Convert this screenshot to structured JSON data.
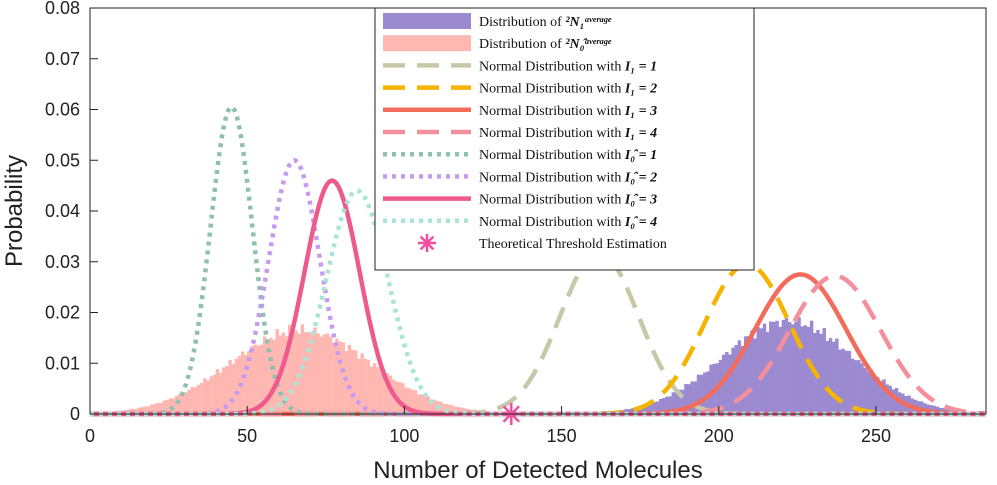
{
  "chart_data": {
    "type": "line",
    "title": "",
    "xlabel": "Number of Detected Molecules",
    "ylabel": "Probability",
    "xlim": [
      0,
      285
    ],
    "ylim": [
      0,
      0.08
    ],
    "xticks": [
      0,
      50,
      100,
      150,
      200,
      250
    ],
    "yticks": [
      0,
      0.01,
      0.02,
      0.03,
      0.04,
      0.05,
      0.06,
      0.07,
      0.08
    ],
    "xtick_labels": [
      "0",
      "50",
      "100",
      "150",
      "200",
      "250"
    ],
    "ytick_labels": [
      "0",
      "0.01",
      "0.02",
      "0.03",
      "0.04",
      "0.05",
      "0.06",
      "0.07",
      "0.08"
    ],
    "legend_position": "top-right",
    "histograms": [
      {
        "name": "Distribution of 2N1average",
        "color": "#9b8ad0",
        "mean": 222,
        "sd": 21,
        "peak": 0.0183
      },
      {
        "name": "Distribution of 2N0average",
        "color": "#ffb7b2",
        "mean": 67,
        "sd": 22.5,
        "peak": 0.0165
      }
    ],
    "series": [
      {
        "name": "I1 = 1",
        "mean": 162,
        "sd": 12.5,
        "peak": 0.0318,
        "color": "#c8c8a8",
        "dash": "dashed"
      },
      {
        "name": "I1 = 2",
        "mean": 209,
        "sd": 13.5,
        "peak": 0.0295,
        "color": "#f5b400",
        "dash": "dashed"
      },
      {
        "name": "I1 = 3",
        "mean": 226,
        "sd": 14.5,
        "peak": 0.0275,
        "color": "#f26b5b",
        "dash": "solid"
      },
      {
        "name": "I1 = 4",
        "mean": 237,
        "sd": 14.5,
        "peak": 0.0272,
        "color": "#f4909c",
        "dash": "dashed"
      },
      {
        "name": "I0 = 1",
        "mean": 45,
        "sd": 6.7,
        "peak": 0.0605,
        "color": "#8ebfb0",
        "dash": "dotted"
      },
      {
        "name": "I0 = 2",
        "mean": 65,
        "sd": 8.2,
        "peak": 0.05,
        "color": "#c39bf0",
        "dash": "dotted"
      },
      {
        "name": "I0 = 3",
        "mean": 77,
        "sd": 8.8,
        "peak": 0.046,
        "color": "#ee5a8e",
        "dash": "solid"
      },
      {
        "name": "I0 = 4",
        "mean": 85,
        "sd": 9.8,
        "peak": 0.044,
        "color": "#a8e5d5",
        "dash": "dotted"
      }
    ],
    "markers": [
      {
        "name": "Theoretical Threshold Estimation",
        "x": 134,
        "y": 0.0,
        "symbol": "asterisk",
        "color": "#f24ea0"
      }
    ],
    "legend": [
      {
        "prefix": "Distribution of ",
        "math": "²N₁ᵃᵛᵉʳᵃᵍᵉ"
      },
      {
        "prefix": "Distribution of ",
        "math": "²N₀̂ᵃᵛᵉʳᵃᵍᵉ"
      },
      {
        "prefix": "Normal Distribution with ",
        "math": "I₁ = 1"
      },
      {
        "prefix": "Normal Distribution with ",
        "math": "I₁ = 2"
      },
      {
        "prefix": "Normal Distribution with ",
        "math": "I₁ = 3"
      },
      {
        "prefix": "Normal Distribution with ",
        "math": "I₁ = 4"
      },
      {
        "prefix": "Normal Distribution with ",
        "math": "I₀̂ = 1"
      },
      {
        "prefix": "Normal Distribution with ",
        "math": "I₀̂ = 2"
      },
      {
        "prefix": "Normal Distribution with ",
        "math": "I₀̂ = 3"
      },
      {
        "prefix": "Normal Distribution with ",
        "math": "I₀̂ = 4"
      },
      {
        "prefix": "Theoretical Threshold Estimation",
        "math": ""
      }
    ]
  }
}
